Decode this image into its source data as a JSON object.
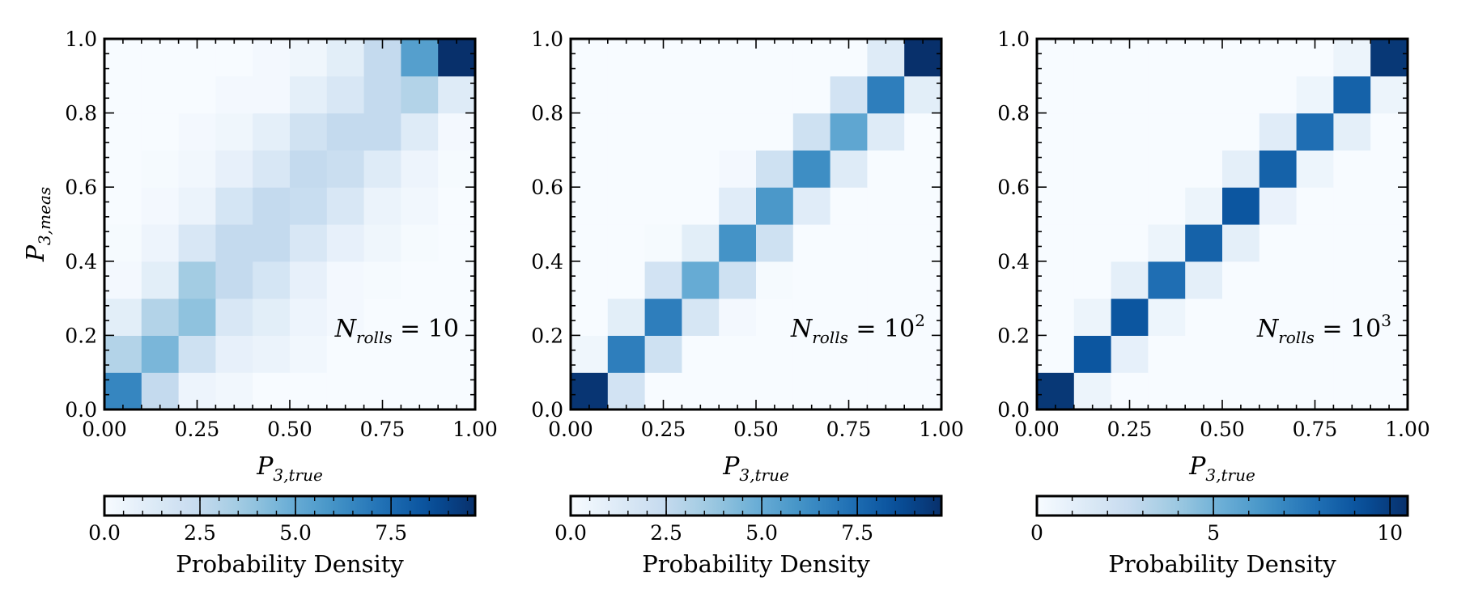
{
  "chart_data": [
    {
      "type": "heatmap",
      "xlabel": "P_{3,true}",
      "xlabel_main": "P",
      "xlabel_sub": "3,true",
      "ylabel": "P_{3,meas}",
      "ylabel_main": "P",
      "ylabel_sub": "3,meas",
      "xlim": [
        0,
        1
      ],
      "ylim": [
        0,
        1
      ],
      "xticks": [
        "0.00",
        "0.25",
        "0.50",
        "0.75",
        "1.00"
      ],
      "yticks": [
        "0.0",
        "0.2",
        "0.4",
        "0.6",
        "0.8",
        "1.0"
      ],
      "annotation": "N_rolls = 10",
      "annotation_main": "N",
      "annotation_sub": "rolls",
      "annotation_rhs": "= 10",
      "annotation_sup": "",
      "bins": 10,
      "cmap": "Blues",
      "vmax": 9.7,
      "colorbar_label": "Probability Density",
      "colorbar_ticks": [
        0.0,
        2.5,
        5.0,
        7.5
      ],
      "colorbar_tick_labels": [
        "0.0",
        "2.5",
        "5.0",
        "7.5"
      ],
      "colorbar_minor_step": 0.5,
      "z": [
        [
          6.5,
          2.5,
          0.5,
          0.3,
          0.0,
          0.0,
          0.0,
          0.0,
          0.0,
          0.0
        ],
        [
          3.0,
          4.5,
          2.0,
          0.8,
          0.6,
          0.3,
          0.0,
          0.0,
          0.0,
          0.0
        ],
        [
          1.0,
          3.0,
          4.0,
          1.5,
          1.0,
          0.5,
          0.2,
          0.0,
          0.0,
          0.0
        ],
        [
          0.2,
          1.0,
          3.5,
          2.5,
          1.7,
          0.8,
          0.2,
          0.1,
          0.0,
          0.0
        ],
        [
          0.1,
          0.5,
          1.5,
          2.5,
          2.5,
          1.5,
          0.8,
          0.4,
          0.1,
          0.0
        ],
        [
          0.0,
          0.2,
          0.6,
          1.7,
          2.5,
          2.3,
          1.5,
          0.6,
          0.3,
          0.0
        ],
        [
          0.0,
          0.1,
          0.3,
          0.8,
          1.5,
          2.5,
          2.2,
          1.2,
          0.5,
          0.1
        ],
        [
          0.0,
          0.0,
          0.2,
          0.4,
          0.9,
          1.9,
          2.5,
          2.5,
          1.2,
          0.2
        ],
        [
          0.0,
          0.0,
          0.0,
          0.2,
          0.2,
          0.9,
          1.5,
          2.5,
          3.0,
          1.2
        ],
        [
          0.0,
          0.0,
          0.0,
          0.0,
          0.2,
          0.4,
          1.0,
          2.5,
          5.5,
          9.7
        ]
      ]
    },
    {
      "type": "heatmap",
      "xlabel": "P_{3,true}",
      "xlabel_main": "P",
      "xlabel_sub": "3,true",
      "ylabel": "",
      "xlim": [
        0,
        1
      ],
      "ylim": [
        0,
        1
      ],
      "xticks": [
        "0.00",
        "0.25",
        "0.50",
        "0.75",
        "1.00"
      ],
      "yticks": [
        "0.0",
        "0.2",
        "0.4",
        "0.6",
        "0.8",
        "1.0"
      ],
      "annotation": "N_rolls = 10^2",
      "annotation_main": "N",
      "annotation_sub": "rolls",
      "annotation_rhs": "= 10",
      "annotation_sup": "2",
      "bins": 10,
      "cmap": "Blues",
      "vmax": 9.7,
      "colorbar_label": "Probability Density",
      "colorbar_ticks": [
        0.0,
        2.5,
        5.0,
        7.5
      ],
      "colorbar_tick_labels": [
        "0.0",
        "2.5",
        "5.0",
        "7.5"
      ],
      "colorbar_minor_step": 0.5,
      "z": [
        [
          9.5,
          1.8,
          0.0,
          0.0,
          0.0,
          0.0,
          0.0,
          0.0,
          0.0,
          0.0
        ],
        [
          0.4,
          6.8,
          2.0,
          0.0,
          0.0,
          0.0,
          0.0,
          0.0,
          0.0,
          0.0
        ],
        [
          0.0,
          1.0,
          6.8,
          1.6,
          0.2,
          0.0,
          0.0,
          0.0,
          0.0,
          0.0
        ],
        [
          0.0,
          0.0,
          1.8,
          5.0,
          2.0,
          0.1,
          0.0,
          0.0,
          0.0,
          0.0
        ],
        [
          0.0,
          0.0,
          0.1,
          1.0,
          6.0,
          2.0,
          0.0,
          0.0,
          0.0,
          0.0
        ],
        [
          0.0,
          0.0,
          0.0,
          0.0,
          1.1,
          5.8,
          1.1,
          0.0,
          0.0,
          0.0
        ],
        [
          0.0,
          0.0,
          0.0,
          0.0,
          0.2,
          2.0,
          6.2,
          1.2,
          0.0,
          0.0
        ],
        [
          0.0,
          0.0,
          0.0,
          0.0,
          0.0,
          0.0,
          2.0,
          5.2,
          1.2,
          0.0
        ],
        [
          0.0,
          0.0,
          0.0,
          0.0,
          0.0,
          0.0,
          0.0,
          1.8,
          6.8,
          1.0
        ],
        [
          0.0,
          0.0,
          0.0,
          0.0,
          0.0,
          0.0,
          0.0,
          0.0,
          1.2,
          9.7
        ]
      ]
    },
    {
      "type": "heatmap",
      "xlabel": "P_{3,true}",
      "xlabel_main": "P",
      "xlabel_sub": "3,true",
      "ylabel": "",
      "xlim": [
        0,
        1
      ],
      "ylim": [
        0,
        1
      ],
      "xticks": [
        "0.00",
        "0.25",
        "0.50",
        "0.75",
        "1.00"
      ],
      "yticks": [
        "0.0",
        "0.2",
        "0.4",
        "0.6",
        "0.8",
        "1.0"
      ],
      "annotation": "N_rolls = 10^3",
      "annotation_main": "N",
      "annotation_sub": "rolls",
      "annotation_rhs": "= 10",
      "annotation_sup": "3",
      "bins": 10,
      "cmap": "Blues",
      "vmax": 10.5,
      "colorbar_label": "Probability Density",
      "colorbar_ticks": [
        0,
        5,
        10
      ],
      "colorbar_tick_labels": [
        "0",
        "5",
        "10"
      ],
      "colorbar_minor_step": 1,
      "z": [
        [
          10.2,
          0.6,
          0.0,
          0.0,
          0.0,
          0.0,
          0.0,
          0.0,
          0.0,
          0.0
        ],
        [
          0.0,
          9.0,
          0.9,
          0.0,
          0.0,
          0.0,
          0.0,
          0.0,
          0.0,
          0.0
        ],
        [
          0.0,
          0.6,
          9.0,
          0.5,
          0.0,
          0.0,
          0.0,
          0.0,
          0.0,
          0.0
        ],
        [
          0.0,
          0.0,
          1.0,
          8.0,
          1.0,
          0.0,
          0.0,
          0.0,
          0.0,
          0.0
        ],
        [
          0.0,
          0.0,
          0.0,
          0.6,
          8.5,
          1.0,
          0.0,
          0.0,
          0.0,
          0.0
        ],
        [
          0.0,
          0.0,
          0.0,
          0.0,
          0.6,
          9.0,
          0.7,
          0.0,
          0.0,
          0.0
        ],
        [
          0.0,
          0.0,
          0.0,
          0.0,
          0.0,
          1.0,
          8.5,
          0.5,
          0.0,
          0.0
        ],
        [
          0.0,
          0.0,
          0.0,
          0.0,
          0.0,
          0.0,
          1.2,
          8.0,
          1.0,
          0.0
        ],
        [
          0.0,
          0.0,
          0.0,
          0.0,
          0.0,
          0.0,
          0.0,
          0.5,
          8.5,
          0.6
        ],
        [
          0.0,
          0.0,
          0.0,
          0.0,
          0.0,
          0.0,
          0.0,
          0.0,
          0.6,
          10.2
        ]
      ]
    }
  ]
}
